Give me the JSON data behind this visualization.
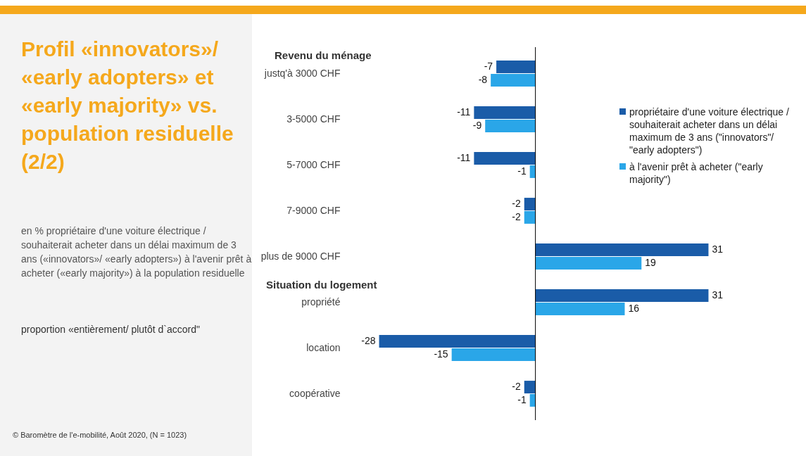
{
  "chart_data": {
    "type": "bar",
    "orientation": "horizontal",
    "title": "Profil «innovators»/ «early adopters» et «early majority» vs. population residuelle (2/2)",
    "subtitle": "en % propriétaire d'une voiture électrique / souhaiterait acheter dans un délai maximum de 3 ans («innovators»/ «early adopters») à l'avenir prêt à acheter («early majority») à la population residuelle",
    "categories": [
      "justq'à 3000 CHF",
      "3-5000 CHF",
      "5-7000 CHF",
      "7-9000 CHF",
      "plus de 9000 CHF",
      "propriété",
      "location",
      "coopérative"
    ],
    "series": [
      {
        "name": "propriétaire d'une voiture électrique /  souhaiterait acheter dans un délai maximum de 3 ans (\"innovators\"/ \"early adopters\")",
        "color": "#1a5ca8",
        "values": [
          -7,
          -11,
          -11,
          -2,
          31,
          31,
          -28,
          -2
        ]
      },
      {
        "name": "à l'avenir prêt à acheter (\"early majority\")",
        "color": "#2aa6e8",
        "values": [
          -8,
          -9,
          -1,
          -2,
          19,
          16,
          -15,
          -1
        ]
      }
    ],
    "data_labels": true,
    "legend": "top right",
    "annotations": [
      "Revenu du ménage",
      "Situation du logement",
      "proportion «entièrement/ plutôt d`accord\"",
      "© Baromètre de l'e-mobilité, Août 2020, (N = 1023)"
    ]
  }
}
